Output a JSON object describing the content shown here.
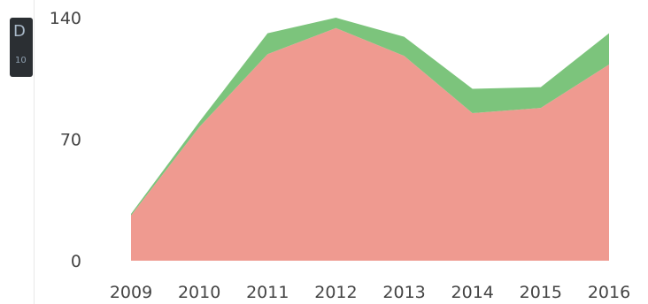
{
  "chart_data": {
    "type": "area",
    "stacked": true,
    "x": [
      "2009",
      "2010",
      "2011",
      "2012",
      "2013",
      "2014",
      "2015",
      "2016"
    ],
    "series": [
      {
        "color": "#ef9a90",
        "values": [
          26,
          77,
          119,
          134,
          118,
          85,
          88,
          113
        ]
      },
      {
        "color": "#7cc47c",
        "values": [
          1,
          3,
          12,
          6,
          11,
          14,
          12,
          18
        ]
      }
    ],
    "yticks": [
      "0",
      "70",
      "140"
    ],
    "ylim": [
      0,
      140
    ],
    "legend": "none",
    "grid": false
  },
  "sidebar": {
    "chip_glyph_top": "D",
    "chip_glyph_bottom": "10"
  }
}
